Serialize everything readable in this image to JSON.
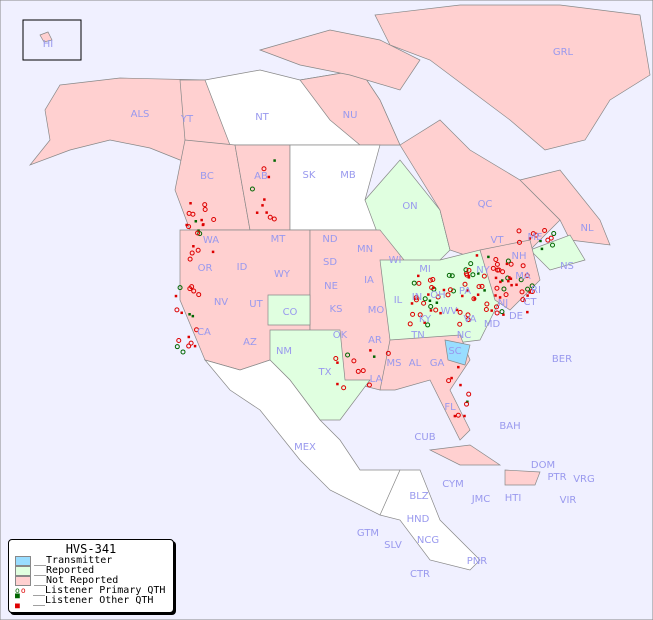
{
  "legend": {
    "title": "HVS-341",
    "items": [
      {
        "label": "__Transmitter",
        "color": "#99ddff"
      },
      {
        "label": "__Reported",
        "color": "#e0ffe0"
      },
      {
        "label": "__Not Reported",
        "color": "#ffd0d0"
      },
      {
        "label": "__Listener Primary QTH",
        "marker": "circle",
        "colors": [
          "#006600",
          "#dd0000"
        ]
      },
      {
        "label": "__Listener Other QTH",
        "marker": "square",
        "colors": [
          "#006600",
          "#dd0000"
        ]
      }
    ]
  },
  "colors": {
    "ocean": "#f0f0ff",
    "land_none": "#ffffff",
    "reported": "#e0ffe0",
    "not_reported": "#ffd0d0",
    "transmitter": "#99ddff",
    "label": "#9999ee"
  },
  "regions": [
    {
      "code": "HI",
      "status": "not_reported"
    },
    {
      "code": "ALS",
      "status": "not_reported"
    },
    {
      "code": "YT",
      "status": "not_reported"
    },
    {
      "code": "NT",
      "status": "none"
    },
    {
      "code": "NU",
      "status": "not_reported"
    },
    {
      "code": "GRL",
      "status": "not_reported"
    },
    {
      "code": "BC",
      "status": "not_reported"
    },
    {
      "code": "AB",
      "status": "not_reported"
    },
    {
      "code": "SK",
      "status": "none"
    },
    {
      "code": "MB",
      "status": "none"
    },
    {
      "code": "ON",
      "status": "reported"
    },
    {
      "code": "QC",
      "status": "not_reported"
    },
    {
      "code": "NL",
      "status": "not_reported"
    },
    {
      "code": "NS",
      "status": "reported"
    },
    {
      "code": "WA",
      "status": "not_reported"
    },
    {
      "code": "OR",
      "status": "not_reported"
    },
    {
      "code": "ID",
      "status": "not_reported"
    },
    {
      "code": "MT",
      "status": "not_reported"
    },
    {
      "code": "WY",
      "status": "not_reported"
    },
    {
      "code": "ND",
      "status": "none"
    },
    {
      "code": "SD",
      "status": "not_reported"
    },
    {
      "code": "NE",
      "status": "not_reported"
    },
    {
      "code": "MN",
      "status": "not_reported"
    },
    {
      "code": "WI",
      "status": "not_reported"
    },
    {
      "code": "IA",
      "status": "not_reported"
    },
    {
      "code": "IL",
      "status": "reported"
    },
    {
      "code": "IN",
      "status": "reported"
    },
    {
      "code": "OH",
      "status": "reported"
    },
    {
      "code": "MI",
      "status": "reported"
    },
    {
      "code": "PA",
      "status": "reported"
    },
    {
      "code": "NY",
      "status": "reported"
    },
    {
      "code": "VT",
      "status": "not_reported"
    },
    {
      "code": "NH",
      "status": "not_reported"
    },
    {
      "code": "ME",
      "status": "not_reported"
    },
    {
      "code": "MA",
      "status": "not_reported"
    },
    {
      "code": "CT",
      "status": "not_reported"
    },
    {
      "code": "RI",
      "status": "not_reported"
    },
    {
      "code": "NJ",
      "status": "not_reported"
    },
    {
      "code": "DE",
      "status": "not_reported"
    },
    {
      "code": "MD",
      "status": "reported"
    },
    {
      "code": "WV",
      "status": "reported"
    },
    {
      "code": "VA",
      "status": "reported"
    },
    {
      "code": "KY",
      "status": "reported"
    },
    {
      "code": "TN",
      "status": "reported"
    },
    {
      "code": "NC",
      "status": "reported"
    },
    {
      "code": "SC",
      "status": "transmitter"
    },
    {
      "code": "GA",
      "status": "not_reported"
    },
    {
      "code": "AL",
      "status": "not_reported"
    },
    {
      "code": "MS",
      "status": "not_reported"
    },
    {
      "code": "LA",
      "status": "not_reported"
    },
    {
      "code": "AR",
      "status": "not_reported"
    },
    {
      "code": "MO",
      "status": "reported"
    },
    {
      "code": "KS",
      "status": "not_reported"
    },
    {
      "code": "OK",
      "status": "not_reported"
    },
    {
      "code": "TX",
      "status": "reported"
    },
    {
      "code": "NM",
      "status": "not_reported"
    },
    {
      "code": "AZ",
      "status": "not_reported"
    },
    {
      "code": "UT",
      "status": "not_reported"
    },
    {
      "code": "NV",
      "status": "not_reported"
    },
    {
      "code": "CA",
      "status": "not_reported"
    },
    {
      "code": "CO",
      "status": "reported"
    },
    {
      "code": "FL",
      "status": "not_reported"
    },
    {
      "code": "BER",
      "status": "none"
    },
    {
      "code": "BAH",
      "status": "none"
    },
    {
      "code": "CUB",
      "status": "not_reported"
    },
    {
      "code": "DOM",
      "status": "not_reported"
    },
    {
      "code": "PTR",
      "status": "not_reported"
    },
    {
      "code": "VRG",
      "status": "none"
    },
    {
      "code": "VIR",
      "status": "none"
    },
    {
      "code": "HTI",
      "status": "none"
    },
    {
      "code": "JMC",
      "status": "none"
    },
    {
      "code": "CYM",
      "status": "none"
    },
    {
      "code": "MEX",
      "status": "none"
    },
    {
      "code": "BLZ",
      "status": "none"
    },
    {
      "code": "GTM",
      "status": "none"
    },
    {
      "code": "HND",
      "status": "none"
    },
    {
      "code": "SLV",
      "status": "none"
    },
    {
      "code": "NCG",
      "status": "none"
    },
    {
      "code": "CTR",
      "status": "none"
    },
    {
      "code": "PNR",
      "status": "none"
    }
  ]
}
